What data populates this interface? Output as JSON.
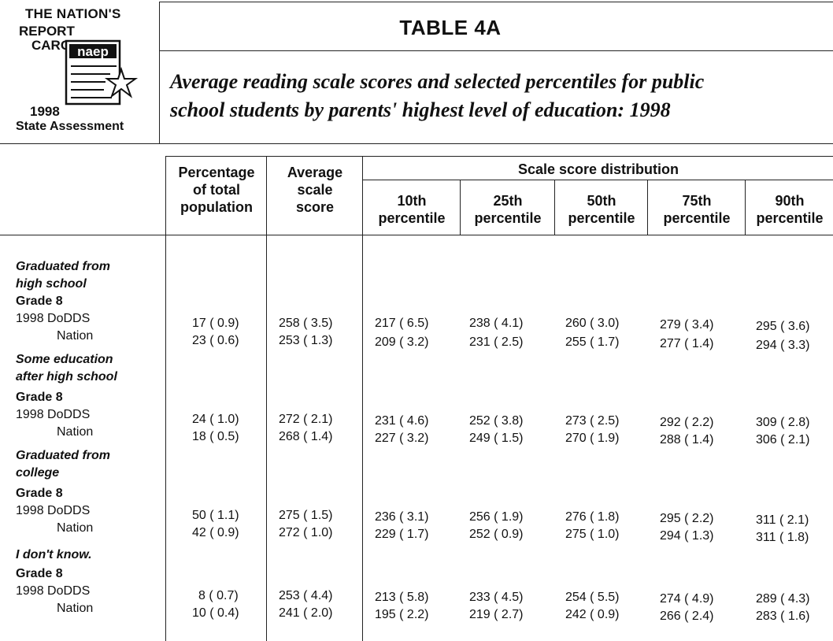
{
  "logo": {
    "line1": "THE NATION'S",
    "line2": "REPORT",
    "line3": "CARO",
    "brand": "naep",
    "year": "1998",
    "assessment": "State Assessment"
  },
  "table_title": "TABLE 4A",
  "subtitle_line1": "Average reading scale scores and selected percentiles for public",
  "subtitle_line2": "school students by parents' highest level of education: 1998",
  "headers": {
    "pct": [
      "Percentage",
      "of total",
      "population"
    ],
    "avg": [
      "Average",
      "scale",
      "score"
    ],
    "dist": "Scale score distribution",
    "p10": [
      "10th",
      "percentile"
    ],
    "p25": [
      "25th",
      "percentile"
    ],
    "p50": [
      "50th",
      "percentile"
    ],
    "p75": [
      "75th",
      "percentile"
    ],
    "p90": [
      "90th",
      "percentile"
    ]
  },
  "sections": [
    {
      "label_lines": [
        "Graduated from",
        "high school"
      ],
      "grade": "Grade 8",
      "rows": [
        {
          "label": "1998  DoDDS",
          "cells": [
            "17 ( 0.9)",
            "258 ( 3.5)",
            "217 ( 6.5)",
            "238 ( 4.1)",
            "260 ( 3.0)",
            "279 ( 3.4)",
            "295 ( 3.6)"
          ]
        },
        {
          "label": "Nation",
          "cells": [
            "23 ( 0.6)",
            "253 ( 1.3)",
            "209 ( 3.2)",
            "231 ( 2.5)",
            "255 ( 1.7)",
            "277 ( 1.4)",
            "294 ( 3.3)"
          ]
        }
      ]
    },
    {
      "label_lines": [
        "Some education",
        "after high school"
      ],
      "grade": "Grade 8",
      "rows": [
        {
          "label": "1998  DoDDS",
          "cells": [
            "24 ( 1.0)",
            "272 ( 2.1)",
            "231 ( 4.6)",
            "252 ( 3.8)",
            "273 ( 2.5)",
            "292 ( 2.2)",
            "309 ( 2.8)"
          ]
        },
        {
          "label": "Nation",
          "cells": [
            "18 ( 0.5)",
            "268 ( 1.4)",
            "227 ( 3.2)",
            "249 ( 1.5)",
            "270 ( 1.9)",
            "288 ( 1.4)",
            "306 ( 2.1)"
          ]
        }
      ]
    },
    {
      "label_lines": [
        "Graduated from",
        "college"
      ],
      "grade": "Grade 8",
      "rows": [
        {
          "label": "1998  DoDDS",
          "cells": [
            "50 ( 1.1)",
            "275 ( 1.5)",
            "236 ( 3.1)",
            "256 ( 1.9)",
            "276 ( 1.8)",
            "295 ( 2.2)",
            "311 ( 2.1)"
          ]
        },
        {
          "label": "Nation",
          "cells": [
            "42 ( 0.9)",
            "272 ( 1.0)",
            "229 ( 1.7)",
            "252 ( 0.9)",
            "275 ( 1.0)",
            "294 ( 1.3)",
            "311 ( 1.8)"
          ]
        }
      ]
    },
    {
      "label_lines": [
        "I don't know."
      ],
      "grade": "Grade 8",
      "rows": [
        {
          "label": "1998  DoDDS",
          "cells": [
            "8 ( 0.7)",
            "253 ( 4.4)",
            "213 ( 5.8)",
            "233 ( 4.5)",
            "254 ( 5.5)",
            "274 ( 4.9)",
            "289 ( 4.3)"
          ]
        },
        {
          "label": "Nation",
          "cells": [
            "10 ( 0.4)",
            "241 ( 2.0)",
            "195 ( 2.2)",
            "219 ( 2.7)",
            "242 ( 0.9)",
            "266 ( 2.4)",
            "283 ( 1.6)"
          ]
        }
      ]
    }
  ]
}
